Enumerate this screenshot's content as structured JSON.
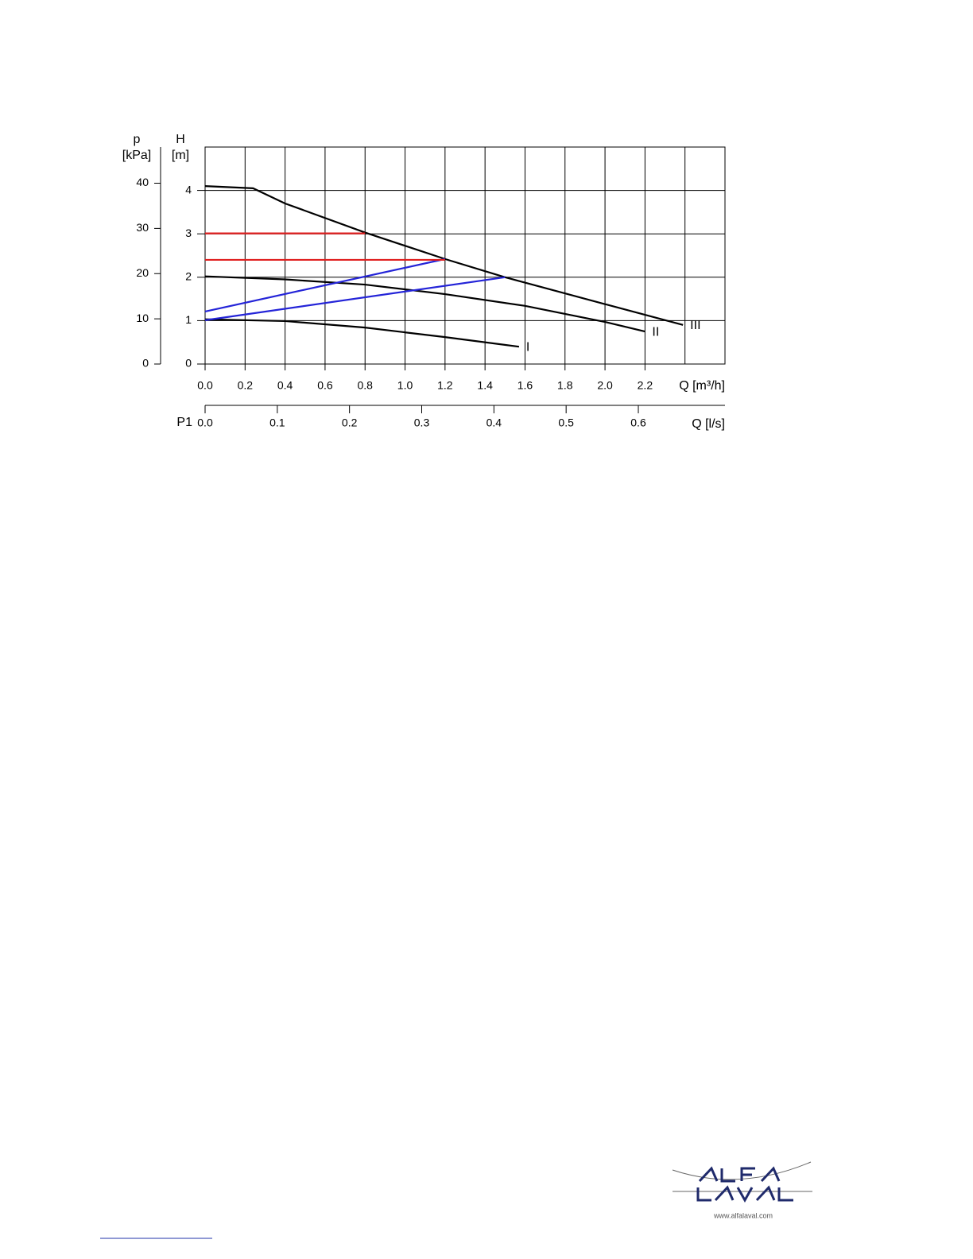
{
  "chart_data": {
    "type": "line",
    "y2_label": [
      "p",
      "[kPa]"
    ],
    "y_label": [
      "H",
      "[m]"
    ],
    "x_label": "Q [m³/h]",
    "x2_label": "Q [l/s]",
    "x2_prefix": "P1",
    "xlim": [
      0,
      2.6
    ],
    "ylim": [
      0,
      5
    ],
    "y2lim": [
      0,
      48
    ],
    "x2lim": [
      0,
      0.72
    ],
    "xticks": [
      {
        "value": 0,
        "label": "0.0"
      },
      0.2,
      0.4,
      0.6,
      0.8,
      {
        "value": 1,
        "label": "1.0"
      },
      1.2,
      1.4,
      1.6,
      1.8,
      {
        "value": 2,
        "label": "2.0"
      },
      2.2
    ],
    "xgrid": [
      0.2,
      0.4,
      0.6,
      0.8,
      1,
      1.2,
      1.4,
      1.6,
      1.8,
      2,
      2.2,
      2.4
    ],
    "yticks": [
      0,
      1,
      2,
      3,
      4
    ],
    "y2ticks": [
      0,
      10,
      20,
      30,
      40
    ],
    "x2ticks": [
      {
        "value": 0,
        "label": "0.0"
      },
      0.1,
      0.2,
      0.3,
      0.4,
      0.5,
      0.6
    ],
    "grid": true,
    "series": [
      {
        "name": "III",
        "color": "#000000",
        "x": [
          0,
          0.24,
          0.4,
          0.8,
          1.2,
          1.5,
          2.0,
          2.39
        ],
        "values": [
          4.1,
          4.05,
          3.7,
          3.03,
          2.42,
          2.0,
          1.38,
          0.9
        ]
      },
      {
        "name": "II",
        "color": "#000000",
        "x": [
          0,
          0.4,
          0.8,
          1.2,
          1.6,
          2.0,
          2.2
        ],
        "values": [
          2.02,
          1.95,
          1.83,
          1.61,
          1.34,
          0.97,
          0.75
        ]
      },
      {
        "name": "I",
        "color": "#000000",
        "x": [
          0,
          0.4,
          0.8,
          1.2,
          1.57
        ],
        "values": [
          1.03,
          0.99,
          0.84,
          0.62,
          0.4
        ]
      },
      {
        "color": "#2424d8",
        "x": [
          0,
          1.2
        ],
        "values": [
          1.21,
          2.42
        ]
      },
      {
        "color": "#2424d8",
        "x": [
          0,
          1.5
        ],
        "values": [
          1.01,
          2.0
        ]
      },
      {
        "color": "#e02020",
        "x": [
          0,
          0.8
        ],
        "values": [
          3.01,
          3.01
        ]
      },
      {
        "color": "#e02020",
        "x": [
          0,
          1.2
        ],
        "values": [
          2.4,
          2.4
        ]
      }
    ]
  },
  "footer": {
    "url": "www.alfalaval.com"
  }
}
